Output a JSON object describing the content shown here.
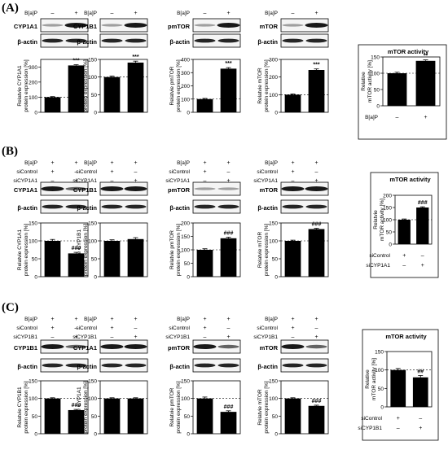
{
  "panels": [
    {
      "label": "(A)",
      "headers": [
        {
          "name": "B[a]P",
          "signs": [
            "–",
            "+"
          ]
        }
      ],
      "blots": [
        {
          "protein": "CYP1A1",
          "ylabel": [
            "Relatvie CYP1A1",
            "protein expression [%]"
          ],
          "ylim": [
            0,
            350
          ],
          "ticks": [
            0,
            100,
            200,
            300
          ],
          "values": [
            100,
            310
          ],
          "errors": [
            4,
            5
          ],
          "sig": "***",
          "styles": [
            "faint",
            "strong"
          ]
        },
        {
          "protein": "CYP1B1",
          "ylabel": [
            "Relatvie CYP1B1",
            "protein expression [%]"
          ],
          "ylim": [
            0,
            150
          ],
          "ticks": [
            0,
            50,
            100,
            150
          ],
          "values": [
            100,
            141
          ],
          "errors": [
            3,
            4
          ],
          "sig": "***",
          "styles": [
            "faint",
            "strong"
          ]
        },
        {
          "protein": "pmTOR",
          "ylabel": [
            "Relatvie pmTOR",
            "protein expression [%]"
          ],
          "ylim": [
            0,
            400
          ],
          "ticks": [
            0,
            100,
            200,
            300,
            400
          ],
          "values": [
            100,
            330
          ],
          "errors": [
            5,
            8
          ],
          "sig": "***",
          "styles": [
            "faint",
            "strong"
          ]
        },
        {
          "protein": "mTOR",
          "ylabel": [
            "Relatvie mTOR",
            "protein expression [%]"
          ],
          "ylim": [
            0,
            300
          ],
          "ticks": [
            0,
            100,
            200,
            300
          ],
          "values": [
            100,
            240
          ],
          "errors": [
            4,
            6
          ],
          "sig": "***",
          "styles": [
            "faint",
            "strong"
          ]
        }
      ],
      "activity": {
        "title": "mTOR activity",
        "ylabel": [
          "Relative",
          "mTOR activity [%]"
        ],
        "ylim": [
          0,
          150
        ],
        "ticks": [
          0,
          50,
          100,
          150
        ],
        "values": [
          100,
          138
        ],
        "errors": [
          3,
          3
        ],
        "sig": "**",
        "rows": [
          {
            "name": "B[a]P",
            "signs": [
              "–",
              "+"
            ]
          }
        ]
      }
    },
    {
      "label": "(B)",
      "headers": [
        {
          "name": "B[a]P",
          "signs": [
            "+",
            "+"
          ]
        },
        {
          "name": "siControl",
          "signs": [
            "+",
            "–"
          ]
        },
        {
          "name": "siCYP1A1",
          "signs": [
            "–",
            "+"
          ]
        }
      ],
      "blots": [
        {
          "protein": "CYP1A1",
          "ylabel": [
            "Relatvie CYP1A1",
            "protein expression [%]"
          ],
          "ylim": [
            0,
            150
          ],
          "ticks": [
            0,
            50,
            100,
            150
          ],
          "values": [
            100,
            65
          ],
          "errors": [
            4,
            3
          ],
          "sig": "###",
          "styles": [
            "strong",
            "medium"
          ]
        },
        {
          "protein": "CYP1B1",
          "ylabel": [
            "Relatvie CYP1B1",
            "protein expression [%]"
          ],
          "ylim": [
            0,
            150
          ],
          "ticks": [
            0,
            50,
            100,
            150
          ],
          "values": [
            100,
            105
          ],
          "errors": [
            3,
            4
          ],
          "sig": "",
          "styles": [
            "strong",
            "strong"
          ]
        },
        {
          "protein": "pmTOR",
          "ylabel": [
            "Relatvie pmTOR",
            "protein expression [%]"
          ],
          "ylim": [
            0,
            200
          ],
          "ticks": [
            0,
            50,
            100,
            150,
            200
          ],
          "values": [
            100,
            143
          ],
          "errors": [
            4,
            4
          ],
          "sig": "###",
          "styles": [
            "faint",
            "faint"
          ]
        },
        {
          "protein": "mTOR",
          "ylabel": [
            "Relatvie mTOR",
            "protein expression [%]"
          ],
          "ylim": [
            0,
            150
          ],
          "ticks": [
            0,
            50,
            100,
            150
          ],
          "values": [
            100,
            133
          ],
          "errors": [
            2,
            2
          ],
          "sig": "###",
          "styles": [
            "strong",
            "strong"
          ]
        }
      ],
      "activity": {
        "title": "mTOR activity",
        "ylabel": [
          "Relatvie",
          "mTOR activity [%]"
        ],
        "ylim": [
          0,
          200
        ],
        "ticks": [
          0,
          50,
          100,
          150,
          200
        ],
        "values": [
          100,
          150
        ],
        "errors": [
          3,
          3
        ],
        "sig": "###",
        "rows": [
          {
            "name": "siControl",
            "signs": [
              "+",
              "–"
            ]
          },
          {
            "name": "siCYP1A1",
            "signs": [
              "–",
              "+"
            ]
          }
        ]
      }
    },
    {
      "label": "(C)",
      "headers": [
        {
          "name": "B[a]P",
          "signs": [
            "+",
            "+"
          ]
        },
        {
          "name": "siControl",
          "signs": [
            "+",
            "–"
          ]
        },
        {
          "name": "siCYP1B1",
          "signs": [
            "–",
            "+"
          ]
        }
      ],
      "blots": [
        {
          "protein": "CYP1B1",
          "ylabel": [
            "Relatvie CYP1B1",
            "protein expression [%]"
          ],
          "ylim": [
            0,
            150
          ],
          "ticks": [
            0,
            50,
            100,
            150
          ],
          "values": [
            100,
            67
          ],
          "errors": [
            2,
            2
          ],
          "sig": "###",
          "styles": [
            "strong",
            "medium"
          ]
        },
        {
          "protein": "CYP1A1",
          "ylabel": [
            "Relatvie CYP1A1",
            "protein expression [%]"
          ],
          "ylim": [
            0,
            150
          ],
          "ticks": [
            0,
            50,
            100,
            150
          ],
          "values": [
            100,
            100
          ],
          "errors": [
            2,
            2
          ],
          "sig": "",
          "styles": [
            "strong",
            "strong"
          ]
        },
        {
          "protein": "pmTOR",
          "ylabel": [
            "Relatvie pmTOR",
            "protein expression [%]"
          ],
          "ylim": [
            0,
            150
          ],
          "ticks": [
            0,
            50,
            100,
            150
          ],
          "values": [
            100,
            62
          ],
          "errors": [
            4,
            3
          ],
          "sig": "###",
          "styles": [
            "strong",
            "medium"
          ]
        },
        {
          "protein": "mTOR",
          "ylabel": [
            "Relatvie mTOR",
            "protein expression [%]"
          ],
          "ylim": [
            0,
            150
          ],
          "ticks": [
            0,
            50,
            100,
            150
          ],
          "values": [
            100,
            79
          ],
          "errors": [
            2,
            2
          ],
          "sig": "###",
          "styles": [
            "strong",
            "medium"
          ]
        }
      ],
      "activity": {
        "title": "mTOR activity",
        "ylabel": [
          "Relative",
          "mTOR activity [%]"
        ],
        "ylim": [
          0,
          150
        ],
        "ticks": [
          0,
          50,
          100,
          150
        ],
        "values": [
          100,
          80
        ],
        "errors": [
          4,
          5
        ],
        "sig": "##",
        "rows": [
          {
            "name": "siControl",
            "signs": [
              "+",
              "–"
            ]
          },
          {
            "name": "siCYP1B1",
            "signs": [
              "–",
              "+"
            ]
          }
        ]
      }
    }
  ],
  "loading_control": "β-actin",
  "chart_data": {
    "type": "bar",
    "charts": [
      {
        "panel": "A",
        "title": "Relatvie CYP1A1 protein expression [%]",
        "categories": [
          "B[a]P –",
          "B[a]P +"
        ],
        "values": [
          100,
          310
        ],
        "ylim": [
          0,
          350
        ],
        "annotation": "***"
      },
      {
        "panel": "A",
        "title": "Relatvie CYP1B1 protein expression [%]",
        "categories": [
          "B[a]P –",
          "B[a]P +"
        ],
        "values": [
          100,
          141
        ],
        "ylim": [
          0,
          150
        ],
        "annotation": "***"
      },
      {
        "panel": "A",
        "title": "Relatvie pmTOR protein expression [%]",
        "categories": [
          "B[a]P –",
          "B[a]P +"
        ],
        "values": [
          100,
          330
        ],
        "ylim": [
          0,
          400
        ],
        "annotation": "***"
      },
      {
        "panel": "A",
        "title": "Relatvie mTOR protein expression [%]",
        "categories": [
          "B[a]P –",
          "B[a]P +"
        ],
        "values": [
          100,
          240
        ],
        "ylim": [
          0,
          300
        ],
        "annotation": "***"
      },
      {
        "panel": "A",
        "title": "mTOR activity",
        "categories": [
          "B[a]P –",
          "B[a]P +"
        ],
        "values": [
          100,
          138
        ],
        "ylim": [
          0,
          150
        ],
        "annotation": "**"
      },
      {
        "panel": "B",
        "title": "Relatvie CYP1A1 protein expression [%]",
        "categories": [
          "siControl",
          "siCYP1A1"
        ],
        "values": [
          100,
          65
        ],
        "ylim": [
          0,
          150
        ],
        "annotation": "###"
      },
      {
        "panel": "B",
        "title": "Relatvie CYP1B1 protein expression [%]",
        "categories": [
          "siControl",
          "siCYP1A1"
        ],
        "values": [
          100,
          105
        ],
        "ylim": [
          0,
          150
        ],
        "annotation": ""
      },
      {
        "panel": "B",
        "title": "Relatvie pmTOR protein expression [%]",
        "categories": [
          "siControl",
          "siCYP1A1"
        ],
        "values": [
          100,
          143
        ],
        "ylim": [
          0,
          200
        ],
        "annotation": "###"
      },
      {
        "panel": "B",
        "title": "Relatvie mTOR protein expression [%]",
        "categories": [
          "siControl",
          "siCYP1A1"
        ],
        "values": [
          100,
          133
        ],
        "ylim": [
          0,
          150
        ],
        "annotation": "###"
      },
      {
        "panel": "B",
        "title": "mTOR activity",
        "categories": [
          "siControl",
          "siCYP1A1"
        ],
        "values": [
          100,
          150
        ],
        "ylim": [
          0,
          200
        ],
        "annotation": "###"
      },
      {
        "panel": "C",
        "title": "Relatvie CYP1B1 protein expression [%]",
        "categories": [
          "siControl",
          "siCYP1B1"
        ],
        "values": [
          100,
          67
        ],
        "ylim": [
          0,
          150
        ],
        "annotation": "###"
      },
      {
        "panel": "C",
        "title": "Relatvie CYP1A1 protein expression [%]",
        "categories": [
          "siControl",
          "siCYP1B1"
        ],
        "values": [
          100,
          100
        ],
        "ylim": [
          0,
          150
        ],
        "annotation": ""
      },
      {
        "panel": "C",
        "title": "Relatvie pmTOR protein expression [%]",
        "categories": [
          "siControl",
          "siCYP1B1"
        ],
        "values": [
          100,
          62
        ],
        "ylim": [
          0,
          150
        ],
        "annotation": "###"
      },
      {
        "panel": "C",
        "title": "Relatvie mTOR protein expression [%]",
        "categories": [
          "siControl",
          "siCYP1B1"
        ],
        "values": [
          100,
          79
        ],
        "ylim": [
          0,
          150
        ],
        "annotation": "###"
      },
      {
        "panel": "C",
        "title": "mTOR activity",
        "categories": [
          "siControl",
          "siCYP1B1"
        ],
        "values": [
          100,
          80
        ],
        "ylim": [
          0,
          150
        ],
        "annotation": "##"
      }
    ]
  }
}
